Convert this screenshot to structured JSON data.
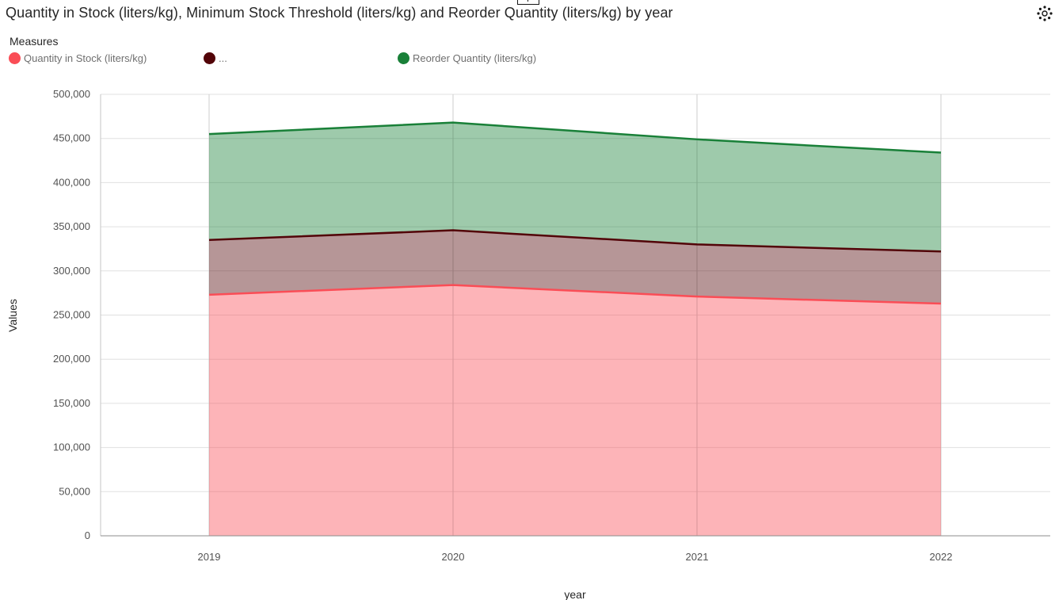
{
  "chart": {
    "title": "Quantity in Stock (liters/kg), Minimum Stock Threshold (liters/kg) and Reorder Quantity (liters/kg) by year",
    "legend_title": "Measures",
    "legend_items": [
      {
        "label": "Quantity in Stock (liters/kg)",
        "color": "#fa4d56"
      },
      {
        "label": "...",
        "color": "#520408"
      },
      {
        "label": "Reorder Quantity (liters/kg)",
        "color": "#198038"
      }
    ],
    "settings_icon": "settings-gear-icon"
  },
  "chart_data": {
    "type": "area",
    "stacked": true,
    "title": "Quantity in Stock (liters/kg), Minimum Stock Threshold (liters/kg) and Reorder Quantity (liters/kg) by year",
    "xlabel": "year",
    "ylabel": "Values",
    "x": [
      "2019",
      "2020",
      "2021",
      "2022"
    ],
    "ylim": [
      0,
      500000
    ],
    "yticks": [
      0,
      50000,
      100000,
      150000,
      200000,
      250000,
      300000,
      350000,
      400000,
      450000,
      500000
    ],
    "ytick_labels": [
      "0",
      "50,000",
      "100,000",
      "150,000",
      "200,000",
      "250,000",
      "300,000",
      "350,000",
      "400,000",
      "450,000",
      "500,000"
    ],
    "grid": true,
    "legend_position": "top-left",
    "series": [
      {
        "name": "Quantity in Stock (liters/kg)",
        "color": "#fa4d56",
        "values": [
          273000,
          284000,
          271000,
          263000
        ]
      },
      {
        "name": "...",
        "color": "#520408",
        "values": [
          62000,
          62000,
          59000,
          59000
        ]
      },
      {
        "name": "Reorder Quantity (liters/kg)",
        "color": "#198038",
        "values": [
          120000,
          122000,
          119000,
          112000
        ]
      }
    ]
  }
}
